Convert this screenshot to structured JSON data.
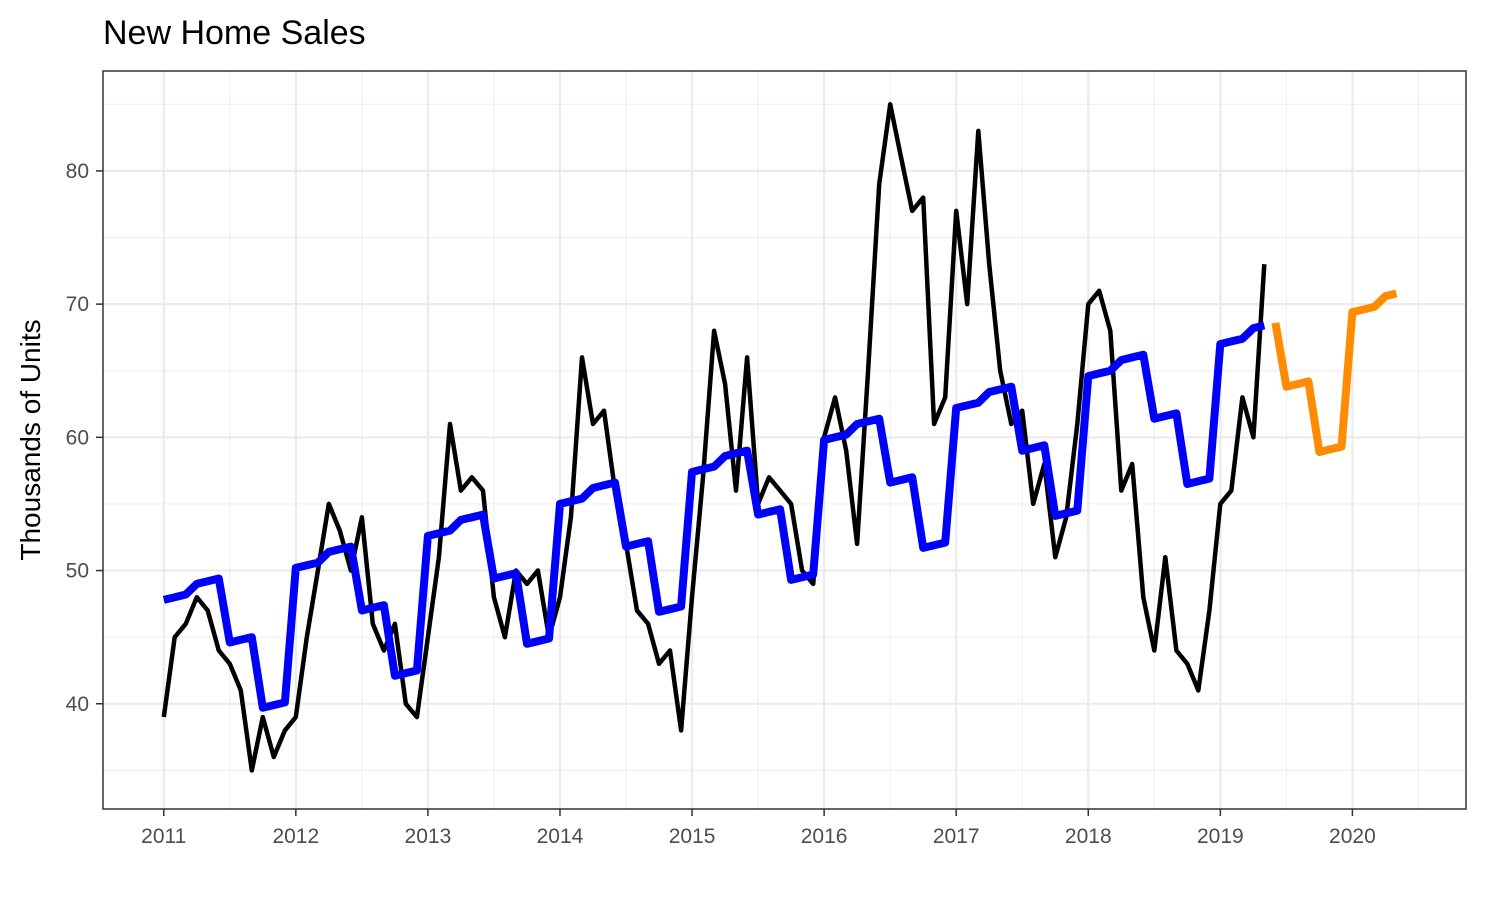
{
  "chart_data": {
    "type": "line",
    "title": "New Home Sales",
    "xlabel": "",
    "ylabel": "Thousands of Units",
    "x_ticks": [
      "2011",
      "2012",
      "2013",
      "2014",
      "2015",
      "2016",
      "2017",
      "2018",
      "2019",
      "2020"
    ],
    "y_ticks": [
      "40",
      "50",
      "60",
      "70",
      "80"
    ],
    "xlim": [
      2010.54,
      2020.86
    ],
    "ylim": [
      32.1,
      87.5
    ],
    "grid": true,
    "legend": "none",
    "series": [
      {
        "color": "#000000",
        "x": [
          2011.0,
          2011.083,
          2011.167,
          2011.25,
          2011.333,
          2011.417,
          2011.5,
          2011.583,
          2011.667,
          2011.75,
          2011.833,
          2011.917,
          2012.0,
          2012.083,
          2012.167,
          2012.25,
          2012.333,
          2012.417,
          2012.5,
          2012.583,
          2012.667,
          2012.75,
          2012.833,
          2012.917,
          2013.0,
          2013.083,
          2013.167,
          2013.25,
          2013.333,
          2013.417,
          2013.5,
          2013.583,
          2013.667,
          2013.75,
          2013.833,
          2013.917,
          2014.0,
          2014.083,
          2014.167,
          2014.25,
          2014.333,
          2014.417,
          2014.5,
          2014.583,
          2014.667,
          2014.75,
          2014.833,
          2014.917,
          2015.0,
          2015.083,
          2015.167,
          2015.25,
          2015.333,
          2015.417,
          2015.5,
          2015.583,
          2015.667,
          2015.75,
          2015.833,
          2015.917,
          2016.0,
          2016.083,
          2016.167,
          2016.25,
          2016.333,
          2016.417,
          2016.5,
          2016.583,
          2016.667,
          2016.75,
          2016.833,
          2016.917,
          2017.0,
          2017.083,
          2017.167,
          2017.25,
          2017.333,
          2017.417,
          2017.5,
          2017.583,
          2017.667,
          2017.75,
          2017.833,
          2017.917,
          2018.0,
          2018.083,
          2018.167,
          2018.25,
          2018.333,
          2018.417,
          2018.5,
          2018.583,
          2018.667,
          2018.75,
          2018.833,
          2018.917,
          2019.0,
          2019.083,
          2019.167,
          2019.25,
          2019.333
        ],
        "y": [
          39,
          45,
          46,
          48,
          47,
          44,
          43,
          41,
          35,
          39,
          36,
          38,
          39,
          45,
          50,
          55,
          53,
          50,
          54,
          46,
          44,
          46,
          40,
          39,
          45,
          51,
          61,
          56,
          57,
          56,
          48,
          45,
          50,
          49,
          50,
          45,
          48,
          54,
          66,
          61,
          62,
          56,
          52,
          47,
          46,
          43,
          44,
          38,
          48,
          57,
          68,
          64,
          56,
          66,
          55,
          57,
          56,
          55,
          50,
          49,
          60,
          63,
          59,
          52,
          65,
          79,
          85,
          81,
          77,
          78,
          61,
          63,
          77,
          70,
          83,
          73,
          65,
          61,
          62,
          55,
          58,
          51,
          54,
          61,
          70,
          71,
          68,
          56,
          58,
          48,
          44,
          51,
          44,
          43,
          41,
          47,
          55,
          56,
          63,
          60,
          73
        ]
      },
      {
        "color": "#0000ff",
        "x": [
          2011.0,
          2011.083,
          2011.167,
          2011.25,
          2011.333,
          2011.417,
          2011.5,
          2011.583,
          2011.667,
          2011.75,
          2011.833,
          2011.917,
          2012.0,
          2012.083,
          2012.167,
          2012.25,
          2012.333,
          2012.417,
          2012.5,
          2012.583,
          2012.667,
          2012.75,
          2012.833,
          2012.917,
          2013.0,
          2013.083,
          2013.167,
          2013.25,
          2013.333,
          2013.417,
          2013.5,
          2013.583,
          2013.667,
          2013.75,
          2013.833,
          2013.917,
          2014.0,
          2014.083,
          2014.167,
          2014.25,
          2014.333,
          2014.417,
          2014.5,
          2014.583,
          2014.667,
          2014.75,
          2014.833,
          2014.917,
          2015.0,
          2015.083,
          2015.167,
          2015.25,
          2015.333,
          2015.417,
          2015.5,
          2015.583,
          2015.667,
          2015.75,
          2015.833,
          2015.917,
          2016.0,
          2016.083,
          2016.167,
          2016.25,
          2016.333,
          2016.417,
          2016.5,
          2016.583,
          2016.667,
          2016.75,
          2016.833,
          2016.917,
          2017.0,
          2017.083,
          2017.167,
          2017.25,
          2017.333,
          2017.417,
          2017.5,
          2017.583,
          2017.667,
          2017.75,
          2017.833,
          2017.917,
          2018.0,
          2018.083,
          2018.167,
          2018.25,
          2018.333,
          2018.417,
          2018.5,
          2018.583,
          2018.667,
          2018.75,
          2018.833,
          2018.917,
          2019.0,
          2019.083,
          2019.167,
          2019.25,
          2019.333
        ],
        "y": [
          47.8,
          48.0,
          48.2,
          49.0,
          49.2,
          49.4,
          44.6,
          44.8,
          45.0,
          39.7,
          39.9,
          40.1,
          50.2,
          50.4,
          50.6,
          51.4,
          51.6,
          51.8,
          47.0,
          47.2,
          47.4,
          42.1,
          42.3,
          42.5,
          52.6,
          52.8,
          53.0,
          53.8,
          54.0,
          54.2,
          49.4,
          49.6,
          49.8,
          44.5,
          44.7,
          44.9,
          55.0,
          55.2,
          55.4,
          56.2,
          56.4,
          56.6,
          51.8,
          52.0,
          52.2,
          46.9,
          47.1,
          47.3,
          57.4,
          57.6,
          57.8,
          58.6,
          58.8,
          59.0,
          54.2,
          54.4,
          54.6,
          49.3,
          49.5,
          49.7,
          59.8,
          60.0,
          60.2,
          61.0,
          61.2,
          61.4,
          56.6,
          56.8,
          57.0,
          51.7,
          51.9,
          52.1,
          62.2,
          62.4,
          62.6,
          63.4,
          63.6,
          63.8,
          59.0,
          59.2,
          59.4,
          54.1,
          54.3,
          54.5,
          64.6,
          64.8,
          65.0,
          65.8,
          66.0,
          66.2,
          61.4,
          61.6,
          61.8,
          56.5,
          56.7,
          56.9,
          67.0,
          67.2,
          67.4,
          68.2,
          68.4
        ]
      },
      {
        "color": "#ff8c00",
        "x": [
          2019.417,
          2019.5,
          2019.583,
          2019.667,
          2019.75,
          2019.833,
          2019.917,
          2020.0,
          2020.083,
          2020.167,
          2020.25,
          2020.333
        ],
        "y": [
          68.6,
          63.8,
          64.0,
          64.2,
          58.9,
          59.1,
          59.3,
          69.4,
          69.6,
          69.8,
          70.6,
          70.8
        ]
      }
    ]
  }
}
